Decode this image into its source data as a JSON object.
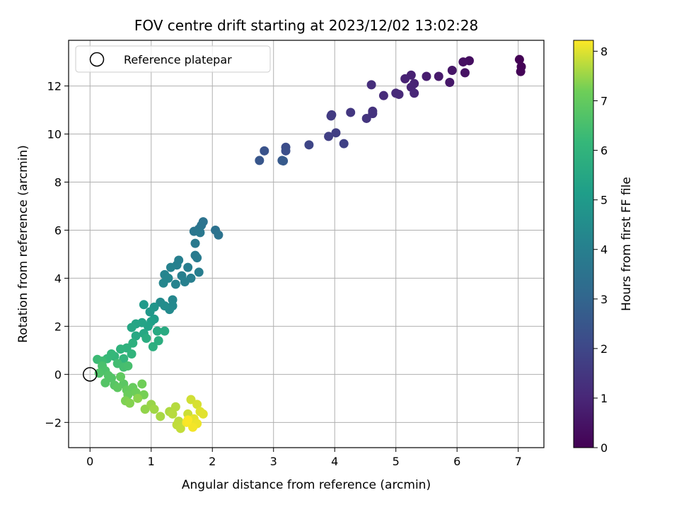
{
  "chart_data": {
    "type": "scatter",
    "title": "FOV centre drift starting at 2023/12/02 13:02:28",
    "xlabel": "Angular distance from reference (arcmin)",
    "ylabel": "Rotation from reference (arcmin)",
    "xlim": [
      -0.35,
      7.42
    ],
    "ylim": [
      -3.05,
      13.9
    ],
    "xticks": [
      0,
      1,
      2,
      3,
      4,
      5,
      6,
      7
    ],
    "yticks": [
      -2,
      0,
      2,
      4,
      6,
      8,
      10,
      12
    ],
    "grid": true,
    "legend": {
      "placement": "top-left",
      "entries": [
        "Reference platepar"
      ]
    },
    "reference_point": {
      "x": 0,
      "y": 0
    },
    "colorbar": {
      "label": "Hours from first FF file",
      "range": [
        0,
        8.22
      ],
      "ticks": [
        0,
        1,
        2,
        3,
        4,
        5,
        6,
        7,
        8
      ],
      "colormap": "viridis"
    },
    "points": [
      {
        "x": 7.02,
        "y": 13.1,
        "t": 0.02
      },
      {
        "x": 7.05,
        "y": 12.8,
        "t": 0.05
      },
      {
        "x": 7.04,
        "y": 12.6,
        "t": 0.08
      },
      {
        "x": 6.2,
        "y": 13.05,
        "t": 0.35
      },
      {
        "x": 6.1,
        "y": 13.0,
        "t": 0.4
      },
      {
        "x": 6.13,
        "y": 12.55,
        "t": 0.45
      },
      {
        "x": 5.92,
        "y": 12.65,
        "t": 0.55
      },
      {
        "x": 5.88,
        "y": 12.15,
        "t": 0.6
      },
      {
        "x": 5.7,
        "y": 12.4,
        "t": 0.65
      },
      {
        "x": 5.5,
        "y": 12.4,
        "t": 0.75
      },
      {
        "x": 5.25,
        "y": 12.45,
        "t": 0.85
      },
      {
        "x": 5.15,
        "y": 12.3,
        "t": 0.9
      },
      {
        "x": 5.3,
        "y": 12.1,
        "t": 0.92
      },
      {
        "x": 5.25,
        "y": 11.95,
        "t": 0.95
      },
      {
        "x": 5.3,
        "y": 11.7,
        "t": 1.0
      },
      {
        "x": 5.05,
        "y": 11.65,
        "t": 1.05
      },
      {
        "x": 5.0,
        "y": 11.7,
        "t": 1.08
      },
      {
        "x": 4.8,
        "y": 11.6,
        "t": 1.15
      },
      {
        "x": 4.6,
        "y": 12.05,
        "t": 1.2
      },
      {
        "x": 4.62,
        "y": 10.95,
        "t": 1.35
      },
      {
        "x": 4.62,
        "y": 10.85,
        "t": 1.38
      },
      {
        "x": 4.52,
        "y": 10.65,
        "t": 1.42
      },
      {
        "x": 4.26,
        "y": 10.9,
        "t": 1.5
      },
      {
        "x": 3.95,
        "y": 10.8,
        "t": 1.6
      },
      {
        "x": 3.94,
        "y": 10.75,
        "t": 1.62
      },
      {
        "x": 4.02,
        "y": 10.05,
        "t": 1.7
      },
      {
        "x": 3.9,
        "y": 9.9,
        "t": 1.75
      },
      {
        "x": 4.15,
        "y": 9.6,
        "t": 1.8
      },
      {
        "x": 3.58,
        "y": 9.55,
        "t": 1.95
      },
      {
        "x": 3.2,
        "y": 9.45,
        "t": 2.2
      },
      {
        "x": 3.2,
        "y": 9.3,
        "t": 2.25
      },
      {
        "x": 2.85,
        "y": 9.3,
        "t": 2.4
      },
      {
        "x": 2.77,
        "y": 8.9,
        "t": 2.5
      },
      {
        "x": 3.14,
        "y": 8.9,
        "t": 2.6
      },
      {
        "x": 3.16,
        "y": 8.88,
        "t": 2.62
      },
      {
        "x": 1.85,
        "y": 6.35,
        "t": 3.5
      },
      {
        "x": 1.82,
        "y": 6.2,
        "t": 3.55
      },
      {
        "x": 1.78,
        "y": 6.05,
        "t": 3.6
      },
      {
        "x": 2.05,
        "y": 6.0,
        "t": 3.45
      },
      {
        "x": 2.1,
        "y": 5.8,
        "t": 3.5
      },
      {
        "x": 1.7,
        "y": 5.95,
        "t": 3.65
      },
      {
        "x": 1.8,
        "y": 5.9,
        "t": 3.7
      },
      {
        "x": 1.72,
        "y": 5.45,
        "t": 3.75
      },
      {
        "x": 1.72,
        "y": 4.95,
        "t": 3.8
      },
      {
        "x": 1.75,
        "y": 4.85,
        "t": 3.82
      },
      {
        "x": 1.6,
        "y": 4.45,
        "t": 3.9
      },
      {
        "x": 1.78,
        "y": 4.25,
        "t": 3.92
      },
      {
        "x": 1.65,
        "y": 4.0,
        "t": 3.95
      },
      {
        "x": 1.5,
        "y": 4.1,
        "t": 4.0
      },
      {
        "x": 1.55,
        "y": 3.85,
        "t": 4.05
      },
      {
        "x": 1.45,
        "y": 4.75,
        "t": 4.0
      },
      {
        "x": 1.42,
        "y": 4.55,
        "t": 4.05
      },
      {
        "x": 1.32,
        "y": 4.45,
        "t": 4.1
      },
      {
        "x": 1.4,
        "y": 3.75,
        "t": 4.15
      },
      {
        "x": 1.22,
        "y": 4.15,
        "t": 4.2
      },
      {
        "x": 1.28,
        "y": 4.0,
        "t": 4.22
      },
      {
        "x": 1.2,
        "y": 3.8,
        "t": 4.25
      },
      {
        "x": 1.35,
        "y": 3.1,
        "t": 4.3
      },
      {
        "x": 1.35,
        "y": 2.85,
        "t": 4.35
      },
      {
        "x": 1.3,
        "y": 2.7,
        "t": 4.4
      },
      {
        "x": 1.15,
        "y": 3.0,
        "t": 4.45
      },
      {
        "x": 1.22,
        "y": 2.85,
        "t": 4.5
      },
      {
        "x": 1.05,
        "y": 2.8,
        "t": 4.8
      },
      {
        "x": 0.98,
        "y": 2.6,
        "t": 4.9
      },
      {
        "x": 0.88,
        "y": 2.9,
        "t": 5.0
      },
      {
        "x": 1.05,
        "y": 2.3,
        "t": 5.1
      },
      {
        "x": 1.0,
        "y": 2.2,
        "t": 5.2
      },
      {
        "x": 0.95,
        "y": 2.0,
        "t": 5.3
      },
      {
        "x": 0.85,
        "y": 2.15,
        "t": 5.35
      },
      {
        "x": 0.75,
        "y": 2.1,
        "t": 5.4
      },
      {
        "x": 0.68,
        "y": 1.95,
        "t": 5.45
      },
      {
        "x": 0.88,
        "y": 1.7,
        "t": 5.5
      },
      {
        "x": 0.75,
        "y": 1.6,
        "t": 5.55
      },
      {
        "x": 1.1,
        "y": 1.8,
        "t": 5.6
      },
      {
        "x": 1.22,
        "y": 1.8,
        "t": 5.65
      },
      {
        "x": 0.92,
        "y": 1.5,
        "t": 5.7
      },
      {
        "x": 1.12,
        "y": 1.4,
        "t": 5.75
      },
      {
        "x": 1.03,
        "y": 1.15,
        "t": 5.8
      },
      {
        "x": 0.7,
        "y": 1.3,
        "t": 5.85
      },
      {
        "x": 0.6,
        "y": 1.1,
        "t": 5.9
      },
      {
        "x": 0.5,
        "y": 1.05,
        "t": 5.95
      },
      {
        "x": 0.68,
        "y": 0.85,
        "t": 6.0
      },
      {
        "x": 0.55,
        "y": 0.65,
        "t": 6.05
      },
      {
        "x": 0.4,
        "y": 0.75,
        "t": 6.1
      },
      {
        "x": 0.35,
        "y": 0.85,
        "t": 6.15
      },
      {
        "x": 0.28,
        "y": 0.65,
        "t": 6.2
      },
      {
        "x": 0.12,
        "y": 0.62,
        "t": 6.3
      },
      {
        "x": 0.2,
        "y": 0.55,
        "t": 6.35
      },
      {
        "x": 0.45,
        "y": 0.45,
        "t": 6.4
      },
      {
        "x": 0.55,
        "y": 0.3,
        "t": 6.45
      },
      {
        "x": 0.62,
        "y": 0.35,
        "t": 6.5
      },
      {
        "x": 0.2,
        "y": 0.35,
        "t": 6.55
      },
      {
        "x": 0.25,
        "y": 0.15,
        "t": 6.6
      },
      {
        "x": 0.15,
        "y": 0.05,
        "t": 6.65
      },
      {
        "x": 0.3,
        "y": -0.05,
        "t": 6.7
      },
      {
        "x": 0.35,
        "y": -0.15,
        "t": 6.72
      },
      {
        "x": 0.25,
        "y": -0.35,
        "t": 6.75
      },
      {
        "x": 0.4,
        "y": -0.45,
        "t": 6.8
      },
      {
        "x": 0.55,
        "y": -0.4,
        "t": 6.85
      },
      {
        "x": 0.45,
        "y": -0.55,
        "t": 6.9
      },
      {
        "x": 0.5,
        "y": -0.1,
        "t": 6.95
      },
      {
        "x": 0.6,
        "y": -0.65,
        "t": 7.0
      },
      {
        "x": 0.7,
        "y": -0.55,
        "t": 7.05
      },
      {
        "x": 0.62,
        "y": -0.85,
        "t": 7.1
      },
      {
        "x": 0.75,
        "y": -0.75,
        "t": 7.15
      },
      {
        "x": 0.85,
        "y": -0.4,
        "t": 7.2
      },
      {
        "x": 0.88,
        "y": -0.85,
        "t": 7.25
      },
      {
        "x": 0.58,
        "y": -1.1,
        "t": 7.3
      },
      {
        "x": 0.65,
        "y": -1.2,
        "t": 7.35
      },
      {
        "x": 0.78,
        "y": -1.0,
        "t": 7.4
      },
      {
        "x": 0.9,
        "y": -1.45,
        "t": 7.45
      },
      {
        "x": 1.0,
        "y": -1.25,
        "t": 7.5
      },
      {
        "x": 1.05,
        "y": -1.45,
        "t": 7.55
      },
      {
        "x": 1.15,
        "y": -1.75,
        "t": 7.6
      },
      {
        "x": 1.3,
        "y": -1.55,
        "t": 7.65
      },
      {
        "x": 1.4,
        "y": -1.35,
        "t": 7.7
      },
      {
        "x": 1.35,
        "y": -1.65,
        "t": 7.72
      },
      {
        "x": 1.45,
        "y": -1.95,
        "t": 7.75
      },
      {
        "x": 1.42,
        "y": -2.1,
        "t": 7.78
      },
      {
        "x": 1.48,
        "y": -2.25,
        "t": 7.8
      },
      {
        "x": 1.6,
        "y": -1.65,
        "t": 7.85
      },
      {
        "x": 1.65,
        "y": -1.05,
        "t": 7.9
      },
      {
        "x": 1.75,
        "y": -1.25,
        "t": 7.95
      },
      {
        "x": 1.8,
        "y": -1.55,
        "t": 8.0
      },
      {
        "x": 1.85,
        "y": -1.65,
        "t": 8.02
      },
      {
        "x": 1.7,
        "y": -1.85,
        "t": 8.05
      },
      {
        "x": 1.75,
        "y": -2.05,
        "t": 8.1
      },
      {
        "x": 1.68,
        "y": -2.2,
        "t": 8.15
      },
      {
        "x": 1.58,
        "y": -2.0,
        "t": 8.18
      },
      {
        "x": 1.6,
        "y": -1.9,
        "t": 8.2
      }
    ]
  }
}
